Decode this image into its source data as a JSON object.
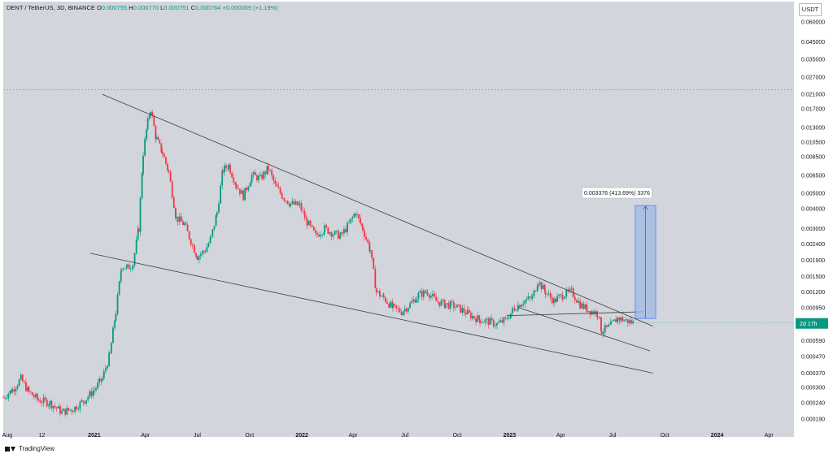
{
  "header": {
    "symbol": "DENT / TetherUS, 3D, BINANCE",
    "open_label": "O",
    "open": "0.000755",
    "high_label": "H",
    "high": "0.000770",
    "low_label": "L",
    "low": "0.000751",
    "close_label": "C",
    "close": "0.000764",
    "change": "+0.000009 (+1.19%)"
  },
  "currency": "USDT",
  "footer": {
    "brand": "TradingView"
  },
  "colors": {
    "up": "#089981",
    "down": "#f23645",
    "background": "#d2d5dc",
    "trendline": "#3a3d45",
    "measure_fill": "#9fb8e6",
    "measure_line": "#2962ff",
    "price_tag": "#089981"
  },
  "chart_data": {
    "type": "candlestick",
    "title": "",
    "scale": "log",
    "x_ticks": [
      "Aug",
      "12",
      "2021",
      "Apr",
      "Jul",
      "Oct",
      "2022",
      "Apr",
      "Jul",
      "Oct",
      "2023",
      "Apr",
      "Jul",
      "Oct",
      "2024",
      "Apr"
    ],
    "x_tick_dates": [
      "2020-08-01",
      "2020-10-01",
      "2021-01-01",
      "2021-04-01",
      "2021-07-01",
      "2021-10-01",
      "2022-01-01",
      "2022-04-01",
      "2022-07-01",
      "2022-10-01",
      "2023-01-01",
      "2023-04-01",
      "2023-07-01",
      "2023-10-01",
      "2024-01-01",
      "2024-04-01"
    ],
    "y_ticks": [
      "0.060000",
      "0.045000",
      "0.035000",
      "0.027000",
      "0.021000",
      "0.017000",
      "0.013000",
      "0.010500",
      "0.008500",
      "0.006500",
      "0.005000",
      "0.004000",
      "0.003000",
      "0.002400",
      "0.001900",
      "0.001500",
      "0.001200",
      "0.000950",
      "0.000760",
      "0.000590",
      "0.000470",
      "0.000370",
      "0.000300",
      "0.000240",
      "0.000190"
    ],
    "y_range": [
      0.000165,
      0.075
    ],
    "x_range": [
      "2020-07-25",
      "2024-05-15"
    ],
    "current_price": "0.000764",
    "countdown": "2d 17h",
    "price_path": [
      [
        "2020-07-25",
        0.00026
      ],
      [
        "2020-08-10",
        0.00029
      ],
      [
        "2020-08-25",
        0.00034
      ],
      [
        "2020-09-08",
        0.00028
      ],
      [
        "2020-09-25",
        0.00025
      ],
      [
        "2020-10-15",
        0.00024
      ],
      [
        "2020-11-05",
        0.00021
      ],
      [
        "2020-11-25",
        0.00022
      ],
      [
        "2020-12-15",
        0.00025
      ],
      [
        "2021-01-01",
        0.00029
      ],
      [
        "2021-01-15",
        0.00034
      ],
      [
        "2021-01-28",
        0.00048
      ],
      [
        "2021-02-08",
        0.0009
      ],
      [
        "2021-02-18",
        0.00175
      ],
      [
        "2021-02-28",
        0.0017
      ],
      [
        "2021-03-10",
        0.0018
      ],
      [
        "2021-03-20",
        0.003
      ],
      [
        "2021-03-28",
        0.009
      ],
      [
        "2021-04-05",
        0.014
      ],
      [
        "2021-04-10",
        0.017
      ],
      [
        "2021-04-20",
        0.011
      ],
      [
        "2021-05-01",
        0.009
      ],
      [
        "2021-05-12",
        0.0068
      ],
      [
        "2021-05-25",
        0.0035
      ],
      [
        "2021-06-08",
        0.0032
      ],
      [
        "2021-06-20",
        0.0025
      ],
      [
        "2021-07-01",
        0.002
      ],
      [
        "2021-07-15",
        0.0022
      ],
      [
        "2021-07-25",
        0.0026
      ],
      [
        "2021-08-05",
        0.0038
      ],
      [
        "2021-08-15",
        0.007
      ],
      [
        "2021-08-25",
        0.0075
      ],
      [
        "2021-09-08",
        0.0056
      ],
      [
        "2021-09-20",
        0.0048
      ],
      [
        "2021-10-05",
        0.0065
      ],
      [
        "2021-10-20",
        0.0062
      ],
      [
        "2021-11-03",
        0.0072
      ],
      [
        "2021-11-15",
        0.0056
      ],
      [
        "2021-11-28",
        0.0048
      ],
      [
        "2021-12-12",
        0.0043
      ],
      [
        "2021-12-28",
        0.0042
      ],
      [
        "2022-01-10",
        0.0033
      ],
      [
        "2022-01-25",
        0.0027
      ],
      [
        "2022-02-10",
        0.003
      ],
      [
        "2022-02-25",
        0.0028
      ],
      [
        "2022-03-10",
        0.0027
      ],
      [
        "2022-03-25",
        0.0032
      ],
      [
        "2022-04-05",
        0.0038
      ],
      [
        "2022-04-18",
        0.003
      ],
      [
        "2022-05-01",
        0.0022
      ],
      [
        "2022-05-12",
        0.0012
      ],
      [
        "2022-05-25",
        0.0011
      ],
      [
        "2022-06-10",
        0.00095
      ],
      [
        "2022-06-25",
        0.0009
      ],
      [
        "2022-07-10",
        0.001
      ],
      [
        "2022-07-25",
        0.00115
      ],
      [
        "2022-08-10",
        0.0012
      ],
      [
        "2022-08-25",
        0.00105
      ],
      [
        "2022-09-10",
        0.001
      ],
      [
        "2022-09-25",
        0.00098
      ],
      [
        "2022-10-10",
        0.00092
      ],
      [
        "2022-10-25",
        0.00085
      ],
      [
        "2022-11-10",
        0.0008
      ],
      [
        "2022-11-25",
        0.00078
      ],
      [
        "2022-12-10",
        0.00075
      ],
      [
        "2022-12-25",
        0.0008
      ],
      [
        "2023-01-10",
        0.00095
      ],
      [
        "2023-01-25",
        0.00105
      ],
      [
        "2023-02-10",
        0.0011
      ],
      [
        "2023-02-20",
        0.0014
      ],
      [
        "2023-03-05",
        0.0012
      ],
      [
        "2023-03-20",
        0.00105
      ],
      [
        "2023-04-05",
        0.00115
      ],
      [
        "2023-04-20",
        0.0012
      ],
      [
        "2023-05-05",
        0.001
      ],
      [
        "2023-05-20",
        0.00092
      ],
      [
        "2023-06-05",
        0.00088
      ],
      [
        "2023-06-12",
        0.00068
      ],
      [
        "2023-06-25",
        0.00072
      ],
      [
        "2023-07-10",
        0.00082
      ],
      [
        "2023-07-25",
        0.00079
      ],
      [
        "2023-08-08",
        0.000764
      ]
    ],
    "trendlines": [
      {
        "name": "upper-resistance",
        "from": [
          "2021-01-15",
          0.021
        ],
        "to": [
          "2023-09-10",
          0.00073
        ]
      },
      {
        "name": "lower-support",
        "from": [
          "2020-12-25",
          0.0021
        ],
        "to": [
          "2023-09-10",
          0.00037
        ]
      },
      {
        "name": "channel-upper",
        "from": [
          "2022-12-28",
          0.00085
        ],
        "to": [
          "2023-08-25",
          0.0009
        ]
      },
      {
        "name": "channel-lower",
        "from": [
          "2023-01-15",
          0.00096
        ],
        "to": [
          "2023-09-05",
          0.00051
        ]
      }
    ],
    "measure": {
      "label": "0.003376 (413.69%) 3376",
      "from_date": "2023-08-10",
      "to_date": "2023-09-15",
      "low": 0.000816,
      "high": 0.004192
    },
    "dashed_high": 0.0225
  }
}
